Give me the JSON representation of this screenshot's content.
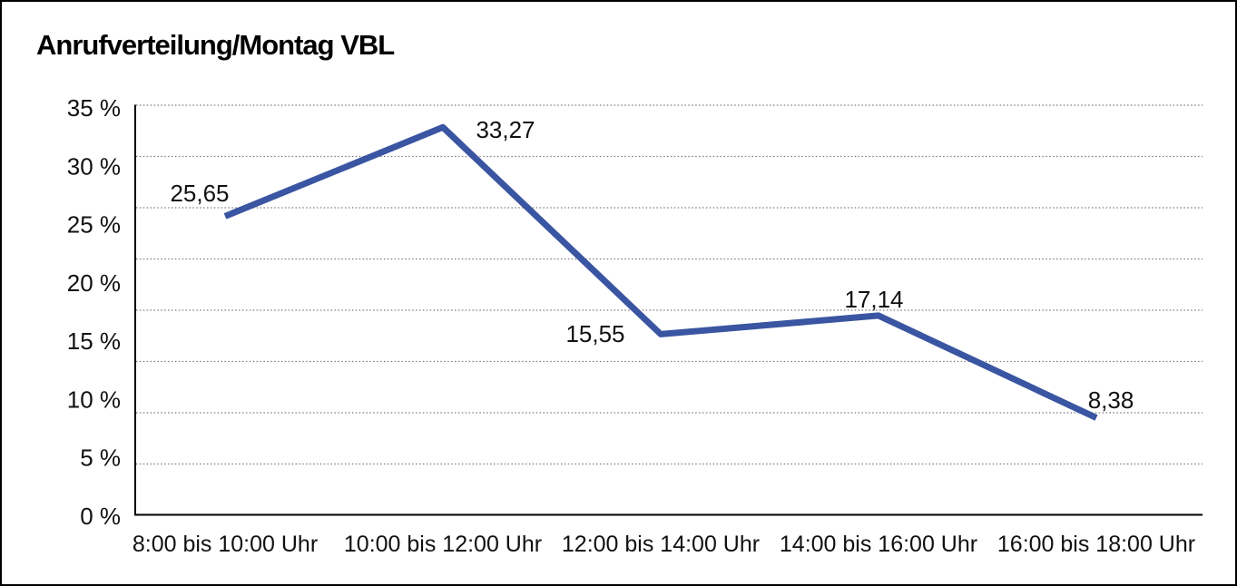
{
  "page": {
    "background_color": "#ffffff",
    "frame_border_color": "#000000"
  },
  "chart_data": {
    "type": "line",
    "title": "Anrufverteilung/Montag VBL",
    "categories": [
      "8:00 bis 10:00 Uhr",
      "10:00 bis 12:00 Uhr",
      "12:00 bis 14:00 Uhr",
      "14:00 bis 16:00 Uhr",
      "16:00 bis 18:00 Uhr"
    ],
    "values": [
      25.65,
      33.27,
      15.55,
      17.14,
      8.38
    ],
    "value_labels": [
      "25,65",
      "33,27",
      "15,55",
      "17,14",
      "8,38"
    ],
    "yticks": [
      "35 %",
      "30 %",
      "25 %",
      "20 %",
      "15 %",
      "10 %",
      "5 %",
      "0 %"
    ],
    "ylim": [
      0,
      35
    ],
    "xlabel": "",
    "ylabel": "",
    "legend": "none",
    "grid": "horizontal-dotted-gray",
    "line_color": "#3A55A1",
    "text_color": "#111111",
    "gridline_color": "#7a7a7a",
    "axis_color": "#000000"
  }
}
